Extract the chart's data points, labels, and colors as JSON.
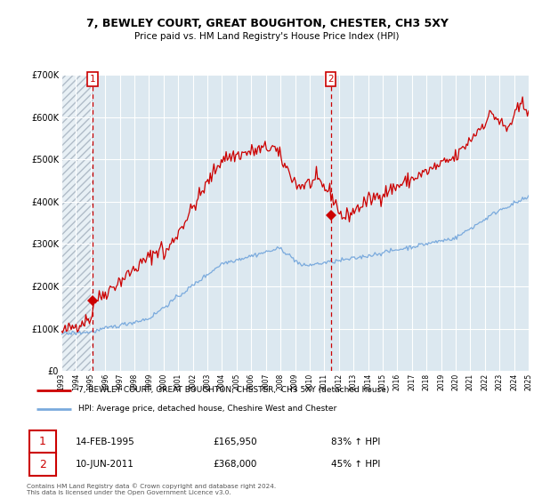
{
  "title": "7, BEWLEY COURT, GREAT BOUGHTON, CHESTER, CH3 5XY",
  "subtitle": "Price paid vs. HM Land Registry's House Price Index (HPI)",
  "legend_line1": "7, BEWLEY COURT, GREAT BOUGHTON, CHESTER,  CH3 5XY (detached house)",
  "legend_line2": "HPI: Average price, detached house, Cheshire West and Chester",
  "transaction1_date": "14-FEB-1995",
  "transaction1_price": "£165,950",
  "transaction1_hpi": "83% ↑ HPI",
  "transaction2_date": "10-JUN-2011",
  "transaction2_price": "£368,000",
  "transaction2_hpi": "45% ↑ HPI",
  "footer": "Contains HM Land Registry data © Crown copyright and database right 2024.\nThis data is licensed under the Open Government Licence v3.0.",
  "red_color": "#cc0000",
  "blue_color": "#7aaadd",
  "bg_color": "#dce8f0",
  "grid_color": "#ffffff",
  "ylim": [
    0,
    700000
  ],
  "yticks": [
    0,
    100000,
    200000,
    300000,
    400000,
    500000,
    600000,
    700000
  ],
  "purchase1_year": 1995.12,
  "purchase1_price": 165950,
  "purchase2_year": 2011.44,
  "purchase2_price": 368000,
  "start_year": 1993,
  "end_year": 2025
}
